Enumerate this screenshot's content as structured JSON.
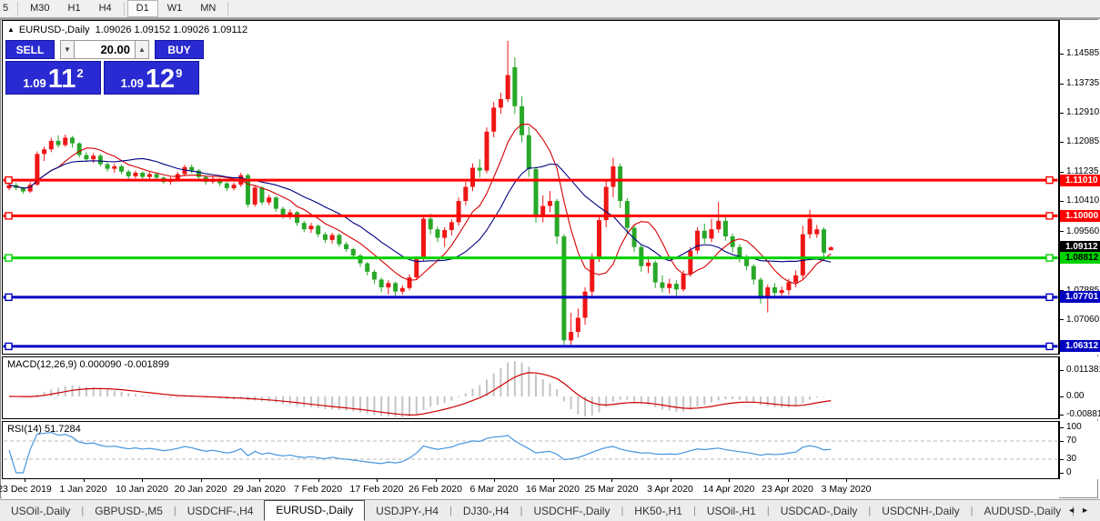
{
  "toolbar": {
    "buttons": [
      {
        "label": "5",
        "active": false,
        "partial": true
      },
      {
        "label": "M30",
        "active": false
      },
      {
        "label": "H1",
        "active": false
      },
      {
        "label": "H4",
        "active": false
      },
      {
        "label": "D1",
        "active": true
      },
      {
        "label": "W1",
        "active": false
      },
      {
        "label": "MN",
        "active": false
      }
    ]
  },
  "header": {
    "collapse_icon": "▲",
    "symbol_label": "EURUSD-,Daily",
    "ohlc": "1.09026 1.09152 1.09026 1.09112"
  },
  "trade": {
    "sell_label": "SELL",
    "buy_label": "BUY",
    "volume": "20.00",
    "spin_down": "▼",
    "spin_up": "▲",
    "sell_price": {
      "base": "1.09",
      "big": "11",
      "sup": "2"
    },
    "buy_price": {
      "base": "1.09",
      "big": "12",
      "sup": "9"
    }
  },
  "tabs": {
    "items": [
      "USOil-,Daily",
      "GBPUSD-,M5",
      "USDCHF-,H4",
      "EURUSD-,Daily",
      "USDJPY-,H4",
      "DJ30-,H4",
      "USDCHF-,Daily",
      "HK50-,H1",
      "USOil-,H1",
      "USDCAD-,Daily",
      "USDCNH-,Daily",
      "AUDUSD-,Daily"
    ],
    "active": "EURUSD-,Daily",
    "scroll_left": "◄",
    "scroll_right": "►"
  },
  "chart_data": {
    "type": "candlestick",
    "symbol": "EURUSD-",
    "timeframe": "Daily",
    "bull_color": "#ef1616",
    "bear_color": "#28a828",
    "price_axis": {
      "min": 1.0608,
      "max": 1.1554,
      "ticks": [
        {
          "text": "1.14585",
          "v": 1.14585
        },
        {
          "text": "1.13735",
          "v": 1.13735
        },
        {
          "text": "1.12910",
          "v": 1.1291
        },
        {
          "text": "1.12085",
          "v": 1.12085
        },
        {
          "text": "1.11235",
          "v": 1.11235
        },
        {
          "text": "1.10410",
          "v": 1.1041
        },
        {
          "text": "1.09560",
          "v": 1.0956
        },
        {
          "text": "1.08735",
          "v": 1.08735
        },
        {
          "text": "1.07885",
          "v": 1.07885
        },
        {
          "text": "1.07060",
          "v": 1.0706
        },
        {
          "text": "1.06235",
          "v": 1.06235
        }
      ]
    },
    "hlines": [
      {
        "price": 1.1101,
        "color": "#ff0000"
      },
      {
        "price": 1.1,
        "color": "#ff0000"
      },
      {
        "price": 1.08812,
        "color": "#00d200"
      },
      {
        "price": 1.07701,
        "color": "#0000c0"
      },
      {
        "price": 1.06312,
        "color": "#0000c0"
      }
    ],
    "price_markers": [
      {
        "text": "1.11010",
        "v": 1.1101,
        "bg": "#ff0000",
        "fg": "#ffffff"
      },
      {
        "text": "1.10000",
        "v": 1.1,
        "bg": "#ff0000",
        "fg": "#ffffff"
      },
      {
        "text": "1.09112",
        "v": 1.09112,
        "bg": "#000000",
        "fg": "#ffffff"
      },
      {
        "text": "1.08812",
        "v": 1.08812,
        "bg": "#00d200",
        "fg": "#000000"
      },
      {
        "text": "1.07701",
        "v": 1.07701,
        "bg": "#0000c0",
        "fg": "#ffffff"
      },
      {
        "text": "1.06312",
        "v": 1.06312,
        "bg": "#0000c0",
        "fg": "#ffffff"
      }
    ],
    "date_ticks": [
      "23 Dec 2019",
      "1 Jan 2020",
      "10 Jan 2020",
      "20 Jan 2020",
      "29 Jan 2020",
      "7 Feb 2020",
      "17 Feb 2020",
      "26 Feb 2020",
      "6 Mar 2020",
      "16 Mar 2020",
      "25 Mar 2020",
      "3 Apr 2020",
      "14 Apr 2020",
      "23 Apr 2020",
      "3 May 2020"
    ],
    "ma_fast": {
      "color": "#d40000",
      "period": 8
    },
    "ma_slow": {
      "color": "#000080",
      "period": 16
    },
    "macd": {
      "label": "MACD(12,26,9) 0.000090 -0.001899",
      "params": [
        12,
        26,
        9
      ],
      "main_value": 9e-05,
      "signal_value": -0.001899,
      "hist_color": "#c4c4c4",
      "signal_color": "#cc0000",
      "axis_labels": [
        {
          "text": "0.011381",
          "v": 0.011381
        },
        {
          "text": "0.00",
          "v": 0
        },
        {
          "text": "-0.00881",
          "v": -0.00881
        }
      ]
    },
    "rsi": {
      "label": "RSI(14) 51.7284",
      "period": 14,
      "value": 51.7284,
      "line_color": "#4496e0",
      "levels": [
        70,
        30
      ],
      "axis_labels": [
        {
          "text": "100",
          "v": 100
        },
        {
          "text": "70",
          "v": 70
        },
        {
          "text": "30",
          "v": 30
        },
        {
          "text": "0",
          "v": 0
        }
      ]
    },
    "candles": [
      [
        1.1078,
        1.1092,
        1.1072,
        1.1087
      ],
      [
        1.1087,
        1.1094,
        1.1072,
        1.1079
      ],
      [
        1.1079,
        1.1082,
        1.1063,
        1.1069
      ],
      [
        1.1069,
        1.1095,
        1.1065,
        1.1088
      ],
      [
        1.1088,
        1.1182,
        1.1085,
        1.1175
      ],
      [
        1.1175,
        1.1196,
        1.1155,
        1.1188
      ],
      [
        1.1188,
        1.1221,
        1.118,
        1.1212
      ],
      [
        1.1212,
        1.1228,
        1.1193,
        1.12
      ],
      [
        1.12,
        1.123,
        1.1195,
        1.1221
      ],
      [
        1.1221,
        1.1226,
        1.1193,
        1.1205
      ],
      [
        1.1205,
        1.1208,
        1.1165,
        1.1172
      ],
      [
        1.1172,
        1.118,
        1.1152,
        1.116
      ],
      [
        1.116,
        1.1178,
        1.115,
        1.117
      ],
      [
        1.117,
        1.1175,
        1.114,
        1.1146
      ],
      [
        1.1146,
        1.1152,
        1.1125,
        1.1133
      ],
      [
        1.1133,
        1.1148,
        1.1122,
        1.114
      ],
      [
        1.114,
        1.1145,
        1.1118,
        1.1125
      ],
      [
        1.1125,
        1.113,
        1.1104,
        1.1112
      ],
      [
        1.1112,
        1.1128,
        1.1106,
        1.1122
      ],
      [
        1.1122,
        1.1126,
        1.1104,
        1.111
      ],
      [
        1.111,
        1.1124,
        1.1102,
        1.1118
      ],
      [
        1.1118,
        1.1122,
        1.11,
        1.1108
      ],
      [
        1.1108,
        1.1112,
        1.109,
        1.1096
      ],
      [
        1.1096,
        1.111,
        1.1088,
        1.1104
      ],
      [
        1.1104,
        1.1124,
        1.1098,
        1.1118
      ],
      [
        1.1118,
        1.1144,
        1.1112,
        1.1138
      ],
      [
        1.1138,
        1.1146,
        1.112,
        1.1128
      ],
      [
        1.1128,
        1.1132,
        1.1102,
        1.111
      ],
      [
        1.111,
        1.1114,
        1.1088,
        1.1096
      ],
      [
        1.1096,
        1.1112,
        1.109,
        1.1104
      ],
      [
        1.1104,
        1.1108,
        1.1084,
        1.1092
      ],
      [
        1.1092,
        1.1096,
        1.107,
        1.1078
      ],
      [
        1.1078,
        1.1094,
        1.1072,
        1.1088
      ],
      [
        1.1088,
        1.1122,
        1.1082,
        1.1115
      ],
      [
        1.1115,
        1.112,
        1.1024,
        1.1032
      ],
      [
        1.1032,
        1.1086,
        1.1026,
        1.108
      ],
      [
        1.108,
        1.1084,
        1.103,
        1.1038
      ],
      [
        1.1038,
        1.106,
        1.103,
        1.1052
      ],
      [
        1.1052,
        1.1056,
        1.1012,
        1.102
      ],
      [
        1.102,
        1.1026,
        1.0992,
        1.1
      ],
      [
        1.1,
        1.1018,
        1.099,
        1.101
      ],
      [
        1.101,
        1.1014,
        1.0972,
        1.098
      ],
      [
        1.098,
        1.0986,
        1.0954,
        1.0962
      ],
      [
        1.0962,
        1.098,
        1.0952,
        1.0972
      ],
      [
        1.0972,
        1.0976,
        1.094,
        1.0948
      ],
      [
        1.0948,
        1.0954,
        1.0924,
        1.0932
      ],
      [
        1.0932,
        1.0952,
        1.0922,
        1.0946
      ],
      [
        1.0946,
        1.095,
        1.0912,
        1.092
      ],
      [
        1.092,
        1.0926,
        1.0898,
        1.0906
      ],
      [
        1.0906,
        1.091,
        1.0878,
        1.0888
      ],
      [
        1.0888,
        1.0892,
        1.0856,
        1.0866
      ],
      [
        1.0866,
        1.087,
        1.0832,
        1.0842
      ],
      [
        1.0842,
        1.0848,
        1.0808,
        1.082
      ],
      [
        1.082,
        1.0826,
        1.0784,
        1.0798
      ],
      [
        1.0798,
        1.0818,
        1.0778,
        1.081
      ],
      [
        1.081,
        1.0814,
        1.0775,
        1.0786
      ],
      [
        1.0786,
        1.0804,
        1.0777,
        1.0796
      ],
      [
        1.0796,
        1.0834,
        1.079,
        1.0826
      ],
      [
        1.0826,
        1.0886,
        1.082,
        1.0878
      ],
      [
        1.0878,
        1.1,
        1.0872,
        1.0992
      ],
      [
        1.0992,
        1.1006,
        1.0948,
        1.0962
      ],
      [
        1.0962,
        1.097,
        1.0926,
        1.0938
      ],
      [
        1.0938,
        1.0968,
        1.0912,
        1.096
      ],
      [
        1.096,
        1.099,
        1.0944,
        1.0982
      ],
      [
        1.0982,
        1.1052,
        1.0972,
        1.1042
      ],
      [
        1.1042,
        1.1096,
        1.103,
        1.1082
      ],
      [
        1.1082,
        1.1148,
        1.107,
        1.1136
      ],
      [
        1.1136,
        1.116,
        1.1108,
        1.1128
      ],
      [
        1.1128,
        1.125,
        1.112,
        1.1238
      ],
      [
        1.1238,
        1.1322,
        1.1222,
        1.1306
      ],
      [
        1.1306,
        1.1348,
        1.1288,
        1.133
      ],
      [
        1.133,
        1.1495,
        1.1322,
        1.1398
      ],
      [
        1.142,
        1.1448,
        1.1288,
        1.131
      ],
      [
        1.131,
        1.1338,
        1.1208,
        1.1228
      ],
      [
        1.1228,
        1.1252,
        1.111,
        1.1132
      ],
      [
        1.1132,
        1.114,
        1.098,
        1.0998
      ],
      [
        1.0998,
        1.1058,
        1.0982,
        1.1028
      ],
      [
        1.1028,
        1.107,
        1.101,
        1.1042
      ],
      [
        1.1042,
        1.1048,
        1.092,
        1.0942
      ],
      [
        1.0942,
        1.0948,
        1.0636,
        1.0648
      ],
      [
        1.0648,
        1.0726,
        1.0636,
        1.0672
      ],
      [
        1.0672,
        1.0738,
        1.0656,
        1.0712
      ],
      [
        1.0712,
        1.0798,
        1.0692,
        1.0786
      ],
      [
        1.0786,
        1.0894,
        1.0768,
        1.0882
      ],
      [
        1.0882,
        1.1002,
        1.087,
        1.0988
      ],
      [
        1.0988,
        1.1098,
        1.0968,
        1.1082
      ],
      [
        1.1082,
        1.1164,
        1.1052,
        1.114
      ],
      [
        1.114,
        1.1148,
        1.1022,
        1.1042
      ],
      [
        1.1042,
        1.105,
        1.0948,
        1.0966
      ],
      [
        1.0966,
        1.0976,
        1.0898,
        1.0912
      ],
      [
        1.0912,
        1.0918,
        1.0842,
        1.0858
      ],
      [
        1.0858,
        1.0886,
        1.0838,
        1.0868
      ],
      [
        1.0868,
        1.0874,
        1.0796,
        1.0812
      ],
      [
        1.0812,
        1.0832,
        1.0784,
        1.0796
      ],
      [
        1.0796,
        1.0822,
        1.078,
        1.0808
      ],
      [
        1.0808,
        1.0818,
        1.0774,
        1.0792
      ],
      [
        1.0792,
        1.0846,
        1.0786,
        1.0836
      ],
      [
        1.0836,
        1.0912,
        1.0828,
        1.0902
      ],
      [
        1.0902,
        1.0968,
        1.0892,
        1.0958
      ],
      [
        1.0958,
        1.0978,
        1.0922,
        1.0936
      ],
      [
        1.0936,
        1.0992,
        1.0926,
        1.0962
      ],
      [
        1.0962,
        1.104,
        1.0952,
        1.0986
      ],
      [
        1.0986,
        1.0996,
        1.093,
        1.0942
      ],
      [
        1.0942,
        1.095,
        1.0896,
        1.0912
      ],
      [
        1.0912,
        1.092,
        1.0868,
        1.0882
      ],
      [
        1.0882,
        1.089,
        1.0846,
        1.0858
      ],
      [
        1.0858,
        1.0864,
        1.0806,
        1.082
      ],
      [
        1.082,
        1.0826,
        1.0752,
        1.0772
      ],
      [
        1.0772,
        1.0806,
        1.0727,
        1.0798
      ],
      [
        1.0798,
        1.081,
        1.0768,
        1.0782
      ],
      [
        1.0782,
        1.08,
        1.0766,
        1.079
      ],
      [
        1.079,
        1.0822,
        1.0776,
        1.0812
      ],
      [
        1.0812,
        1.0846,
        1.0798,
        1.0832
      ],
      [
        1.0832,
        1.0972,
        1.082,
        1.0948
      ],
      [
        1.0948,
        1.1017,
        1.0936,
        1.0992
      ],
      [
        1.0948,
        1.0974,
        1.0938,
        1.0962
      ],
      [
        1.0962,
        1.0968,
        1.0882,
        1.0896
      ],
      [
        1.0903,
        1.0915,
        1.0903,
        1.0911
      ]
    ]
  }
}
